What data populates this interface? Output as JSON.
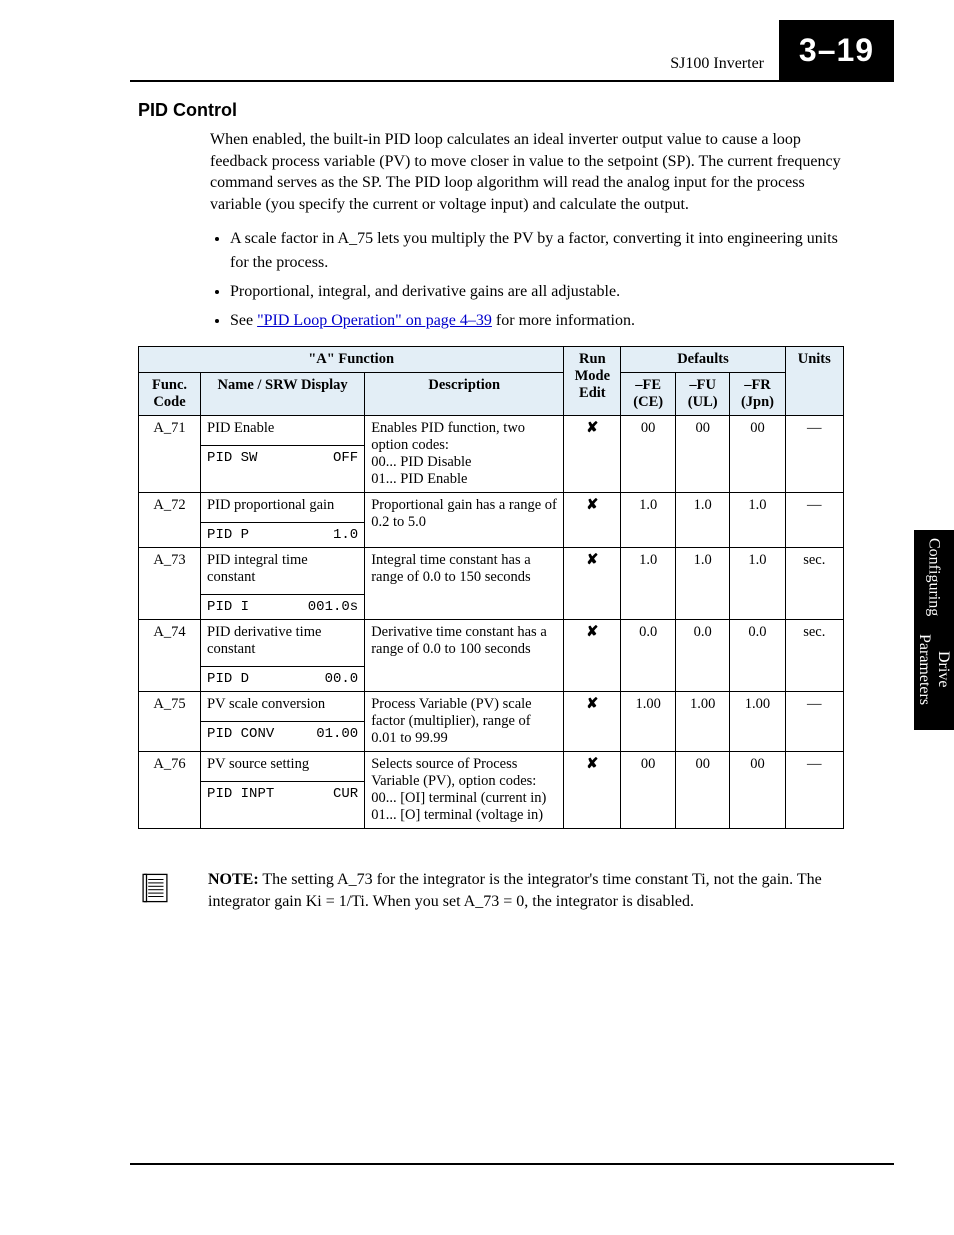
{
  "header": {
    "product": "SJ100 Inverter",
    "page_number": "3–19",
    "side_tab_line1": "Configuring",
    "side_tab_line2": "Drive Parameters"
  },
  "section": {
    "title": "PID Control",
    "intro": "When enabled, the built-in PID loop calculates an ideal inverter output value to cause a loop feedback process variable (PV) to move closer in value to the setpoint (SP). The current frequency command serves as the SP. The PID loop algorithm will read the analog input for the process variable (you specify the current or voltage input) and calculate the output.",
    "bullets": [
      "A scale factor in A_75 lets you multiply the PV by a factor, converting it into engineering units for the process.",
      "Proportional, integral, and derivative gains are all adjustable."
    ],
    "bullet_link_prefix": "See ",
    "bullet_link_text": "\"PID Loop Operation\" on page 4–39",
    "bullet_link_suffix": " for more information."
  },
  "table": {
    "group_a": "\"A\" Function",
    "group_run": "Run Mode Edit",
    "group_def": "Defaults",
    "h_func": "Func. Code",
    "h_name": "Name / SRW Display",
    "h_desc": "Description",
    "h_fe": "–FE (CE)",
    "h_fu": "–FU (UL)",
    "h_fr": "–FR (Jpn)",
    "h_units": "Units",
    "rows": [
      {
        "code": "A_71",
        "name": "PID Enable",
        "srw_l": "PID SW",
        "srw_r": "OFF",
        "desc": "Enables PID function, two option codes:\n00... PID Disable\n01... PID Enable",
        "run": "✘",
        "fe": "00",
        "fu": "00",
        "fr": "00",
        "units": "—"
      },
      {
        "code": "A_72",
        "name": "PID proportional gain",
        "srw_l": "PID P",
        "srw_r": "1.0",
        "desc": "Proportional gain has a range of 0.2 to 5.0",
        "run": "✘",
        "fe": "1.0",
        "fu": "1.0",
        "fr": "1.0",
        "units": "—"
      },
      {
        "code": "A_73",
        "name": "PID integral time constant",
        "srw_l": "PID I",
        "srw_r": "001.0s",
        "desc": "Integral time constant has a range of 0.0 to 150 seconds",
        "run": "✘",
        "fe": "1.0",
        "fu": "1.0",
        "fr": "1.0",
        "units": "sec."
      },
      {
        "code": "A_74",
        "name": "PID derivative time constant",
        "srw_l": "PID D",
        "srw_r": "00.0",
        "desc": "Derivative time constant has a range of 0.0 to 100 seconds",
        "run": "✘",
        "fe": "0.0",
        "fu": "0.0",
        "fr": "0.0",
        "units": "sec."
      },
      {
        "code": "A_75",
        "name": "PV scale conversion",
        "srw_l": "PID CONV",
        "srw_r": "01.00",
        "desc": "Process Variable (PV) scale factor (multiplier), range of 0.01 to 99.99",
        "run": "✘",
        "fe": "1.00",
        "fu": "1.00",
        "fr": "1.00",
        "units": "—"
      },
      {
        "code": "A_76",
        "name": "PV source setting",
        "srw_l": "PID INPT",
        "srw_r": "CUR",
        "desc": "Selects source of Process Variable (PV), option codes:\n00... [OI] terminal (current in)\n01... [O] terminal (voltage in)",
        "run": "✘",
        "fe": "00",
        "fu": "00",
        "fr": "00",
        "units": "—"
      }
    ]
  },
  "note": {
    "label": "NOTE:",
    "text": " The setting A_73 for the integrator is the integrator's time constant Ti, not the gain. The integrator gain Ki = 1/Ti. When you set A_73 = 0, the integrator is disabled."
  },
  "style": {
    "header_bg": "#e3eef6",
    "link_color": "#0000cc",
    "page_box_bg": "#000000",
    "page_box_fg": "#ffffff"
  }
}
